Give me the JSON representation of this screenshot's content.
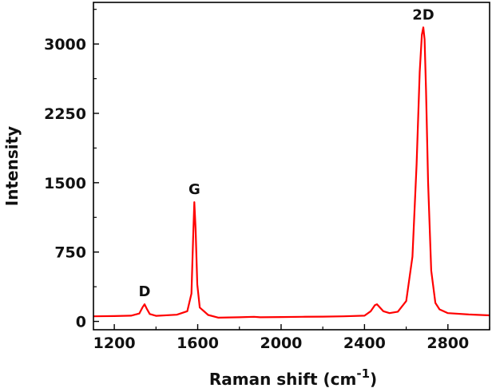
{
  "chart_data": {
    "type": "line",
    "title": "",
    "xlabel": "Raman shift (cm",
    "xlabel_superscript": "-1",
    "xlabel_suffix": ")",
    "ylabel": "Intensity",
    "xlim": [
      1100,
      3000
    ],
    "ylim": [
      -90,
      3450
    ],
    "x_ticks": [
      1200,
      1600,
      2000,
      2400,
      2800
    ],
    "y_ticks": [
      0,
      750,
      1500,
      2250,
      3000
    ],
    "grid": false,
    "series": [
      {
        "color": "#ff0000",
        "x": [
          1100,
          1200,
          1280,
          1320,
          1335,
          1345,
          1355,
          1370,
          1400,
          1500,
          1550,
          1570,
          1578,
          1584,
          1590,
          1598,
          1610,
          1650,
          1700,
          1800,
          1870,
          1900,
          2000,
          2100,
          2200,
          2300,
          2400,
          2430,
          2450,
          2460,
          2470,
          2490,
          2520,
          2560,
          2600,
          2630,
          2650,
          2665,
          2675,
          2682,
          2688,
          2695,
          2705,
          2720,
          2740,
          2760,
          2800,
          2900,
          3000
        ],
        "values": [
          55,
          58,
          62,
          85,
          150,
          185,
          140,
          80,
          60,
          72,
          110,
          300,
          900,
          1290,
          1000,
          400,
          150,
          70,
          40,
          45,
          50,
          45,
          47,
          50,
          52,
          55,
          62,
          110,
          175,
          185,
          160,
          110,
          90,
          105,
          220,
          700,
          1700,
          2700,
          3100,
          3180,
          3050,
          2500,
          1500,
          550,
          200,
          130,
          90,
          75,
          65
        ]
      }
    ],
    "annotations": [
      {
        "text": "D",
        "x": 1345,
        "y": 185
      },
      {
        "text": "G",
        "x": 1584,
        "y": 1290
      },
      {
        "text": "2D",
        "x": 2682,
        "y": 3180
      }
    ]
  }
}
